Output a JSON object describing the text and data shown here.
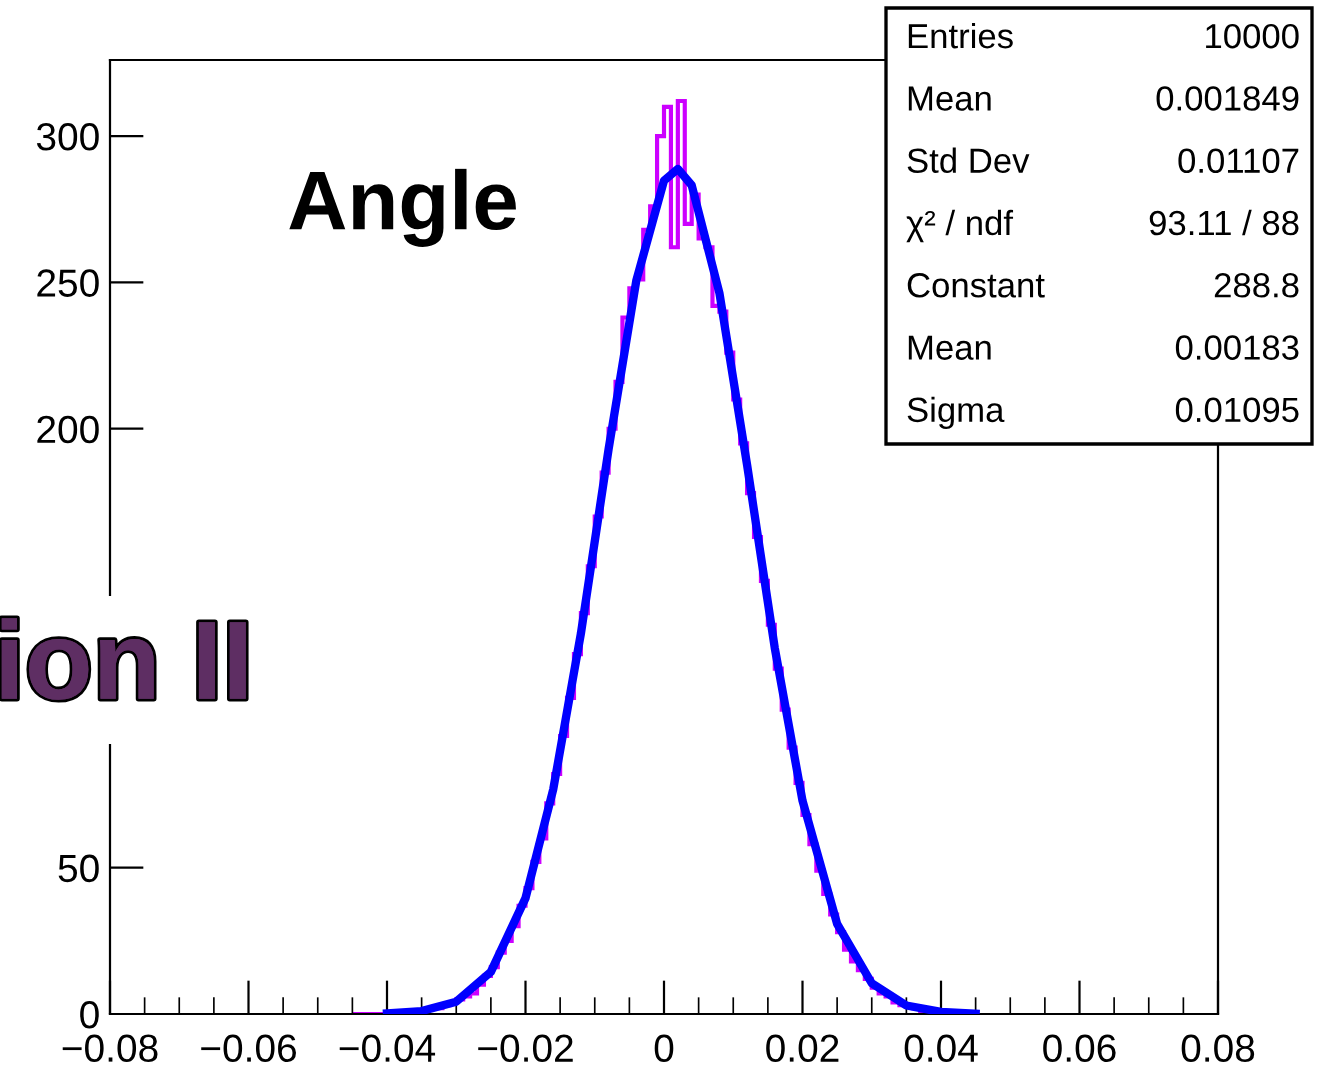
{
  "chart_data": {
    "type": "histogram",
    "title": "Angle",
    "bins": [
      -0.045,
      -0.044,
      -0.043,
      -0.042,
      -0.041,
      -0.04,
      -0.039,
      -0.038,
      -0.037,
      -0.036,
      -0.035,
      -0.034,
      -0.033,
      -0.032,
      -0.031,
      -0.03,
      -0.029,
      -0.028,
      -0.027,
      -0.026,
      -0.025,
      -0.024,
      -0.023,
      -0.022,
      -0.021,
      -0.02,
      -0.019,
      -0.018,
      -0.017,
      -0.016,
      -0.015,
      -0.014,
      -0.013,
      -0.012,
      -0.011,
      -0.01,
      -0.009,
      -0.008,
      -0.007,
      -0.006,
      -0.005,
      -0.004,
      -0.003,
      -0.002,
      -0.001,
      0,
      0.001,
      0.002,
      0.003,
      0.004,
      0.005,
      0.006,
      0.007,
      0.008,
      0.009,
      0.01,
      0.011,
      0.012,
      0.013,
      0.014,
      0.015,
      0.016,
      0.017,
      0.018,
      0.019,
      0.02,
      0.021,
      0.022,
      0.023,
      0.024,
      0.025,
      0.026,
      0.027,
      0.028,
      0.029,
      0.03,
      0.031,
      0.032,
      0.033,
      0.034,
      0.035,
      0.036,
      0.037,
      0.038,
      0.039,
      0.04,
      0.041,
      0.042,
      0.043,
      0.044,
      0.045
    ],
    "series": [
      {
        "type": "histogram",
        "color": "#cc00ff",
        "values": [
          0,
          0,
          0,
          0,
          0,
          0,
          0,
          1,
          0,
          1,
          1,
          2,
          2,
          3,
          4,
          5,
          6,
          7,
          10,
          13,
          16,
          21,
          25,
          30,
          37,
          43,
          52,
          60,
          72,
          82,
          95,
          108,
          123,
          137,
          153,
          170,
          185,
          200,
          216,
          238,
          248,
          251,
          268,
          276,
          300,
          310,
          262,
          312,
          270,
          280,
          265,
          262,
          242,
          240,
          226,
          210,
          195,
          178,
          163,
          148,
          133,
          118,
          104,
          91,
          79,
          68,
          58,
          49,
          41,
          34,
          28,
          22,
          18,
          15,
          12,
          9,
          7,
          6,
          4,
          3,
          3,
          2,
          1,
          1,
          1,
          0,
          1,
          0,
          0,
          0
        ]
      },
      {
        "type": "line",
        "color": "#0000ff",
        "x": [
          -0.04,
          -0.035,
          -0.03,
          -0.025,
          -0.02,
          -0.016,
          -0.012,
          -0.008,
          -0.004,
          0,
          0.002,
          0.004,
          0.008,
          0.012,
          0.016,
          0.02,
          0.025,
          0.03,
          0.035,
          0.04,
          0.045
        ],
        "values": [
          0.2,
          1.0,
          4.2,
          14.4,
          39.6,
          76.7,
          130.0,
          193.0,
          250.6,
          284.8,
          288.8,
          283.2,
          246.4,
          187.6,
          125.0,
          72.9,
          30.8,
          10.5,
          2.9,
          0.7,
          0.1
        ]
      }
    ],
    "xlim": [
      -0.08,
      0.08
    ],
    "xticks": [
      {
        "value": -0.08,
        "label": "−0.08"
      },
      {
        "value": -0.06,
        "label": "−0.06"
      },
      {
        "value": -0.04,
        "label": "−0.04"
      },
      {
        "value": -0.02,
        "label": "−0.02"
      },
      0,
      0.02,
      0.04,
      0.06,
      0.08
    ],
    "ylim": [
      0,
      326
    ],
    "yticks": [
      0,
      50,
      200,
      250,
      300
    ],
    "annotations": [
      "ion II",
      "Entries\t10000",
      "Mean\t0.001849",
      "Std Dev\t0.01107",
      "χ² / ndf\t93.11 / 88",
      "Constant\t288.8",
      "Mean\t0.00183",
      "Sigma\t0.01095"
    ],
    "grid": false,
    "legend": false
  }
}
